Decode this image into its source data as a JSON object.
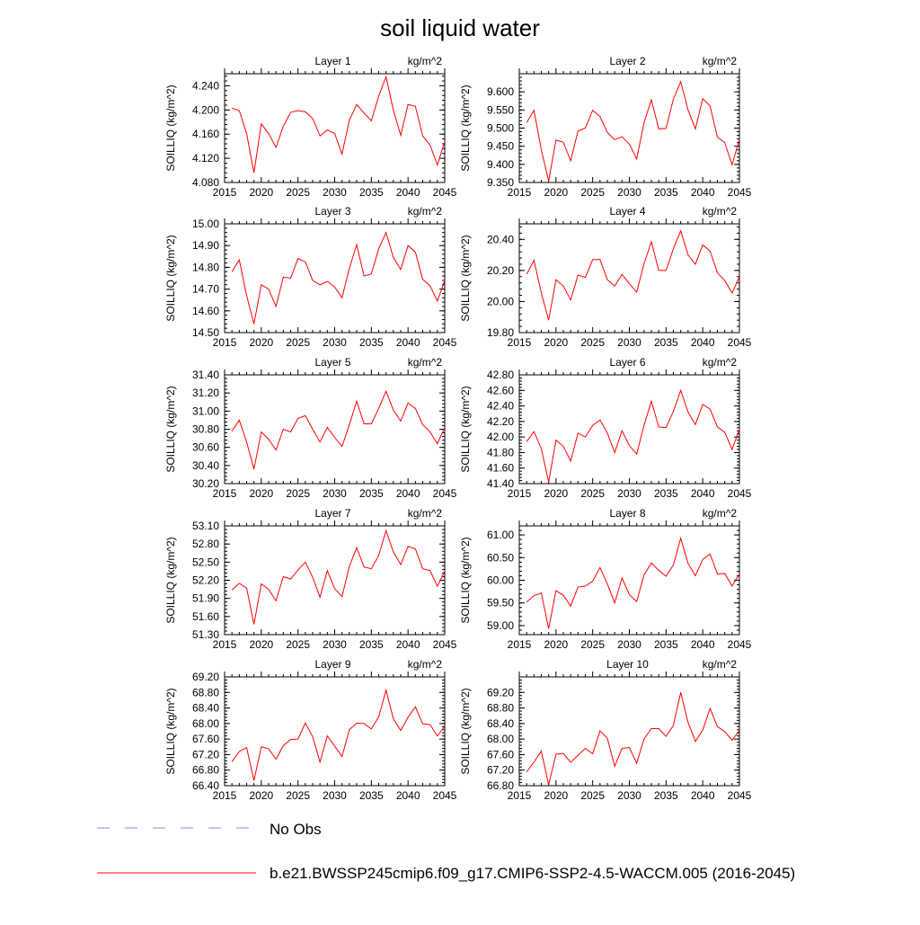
{
  "figure_title": "soil liquid water",
  "legend": {
    "obs_label": "No Obs",
    "model_label": "b.e21.BWSSP245cmip6.f09_g17.CMIP6-SSP2-4.5-WACCM.005 (2016-2045)",
    "obs_color": "#8888ff",
    "model_color": "#ff0000"
  },
  "chart_data": [
    {
      "type": "line",
      "title": "Layer 1",
      "units": "kg/m^2",
      "ylabel": "SOILLIQ  (kg/m^2)",
      "xlim": [
        2015,
        2045
      ],
      "x_ticks": [
        2015,
        2020,
        2025,
        2030,
        2035,
        2040,
        2045
      ],
      "ylim": [
        4.08,
        4.26
      ],
      "y_ticks": [
        "4.080",
        "4.120",
        "4.160",
        "4.200",
        "4.240"
      ],
      "series": [
        {
          "values": [
            4.203,
            4.199,
            4.161,
            4.096,
            4.177,
            4.161,
            4.138,
            4.173,
            4.196,
            4.199,
            4.197,
            4.186,
            4.157,
            4.167,
            4.161,
            4.127,
            4.183,
            4.209,
            4.195,
            4.182,
            4.223,
            4.255,
            4.2,
            4.158,
            4.209,
            4.206,
            4.157,
            4.142,
            4.109,
            4.148
          ]
        }
      ]
    },
    {
      "type": "line",
      "title": "Layer 2",
      "units": "kg/m^2",
      "ylabel": "SOILLIQ  (kg/m^2)",
      "xlim": [
        2015,
        2045
      ],
      "x_ticks": [
        2015,
        2020,
        2025,
        2030,
        2035,
        2040,
        2045
      ],
      "ylim": [
        9.35,
        9.65
      ],
      "y_ticks": [
        "9.350",
        "9.400",
        "9.450",
        "9.500",
        "9.550",
        "9.600"
      ],
      "series": [
        {
          "values": [
            9.515,
            9.549,
            9.44,
            9.354,
            9.467,
            9.461,
            9.41,
            9.492,
            9.5,
            9.549,
            9.532,
            9.488,
            9.468,
            9.476,
            9.456,
            9.415,
            9.515,
            9.578,
            9.498,
            9.499,
            9.58,
            9.628,
            9.55,
            9.498,
            9.581,
            9.561,
            9.475,
            9.46,
            9.399,
            9.469
          ]
        }
      ]
    },
    {
      "type": "line",
      "title": "Layer 3",
      "units": "kg/m^2",
      "ylabel": "SOILLIQ  (kg/m^2)",
      "xlim": [
        2015,
        2045
      ],
      "x_ticks": [
        2015,
        2020,
        2025,
        2030,
        2035,
        2040,
        2045
      ],
      "ylim": [
        14.5,
        15.0
      ],
      "y_ticks": [
        "14.50",
        "14.60",
        "14.70",
        "14.80",
        "14.90",
        "15.00"
      ],
      "series": [
        {
          "values": [
            14.78,
            14.835,
            14.67,
            14.54,
            14.72,
            14.7,
            14.62,
            14.755,
            14.75,
            14.84,
            14.825,
            14.74,
            14.72,
            14.735,
            14.71,
            14.66,
            14.795,
            14.905,
            14.76,
            14.77,
            14.885,
            14.96,
            14.845,
            14.79,
            14.9,
            14.87,
            14.745,
            14.715,
            14.645,
            14.74
          ]
        }
      ]
    },
    {
      "type": "line",
      "title": "Layer 4",
      "units": "kg/m^2",
      "ylabel": "SOILLIQ  (kg/m^2)",
      "xlim": [
        2015,
        2045
      ],
      "x_ticks": [
        2015,
        2020,
        2025,
        2030,
        2035,
        2040,
        2045
      ],
      "ylim": [
        19.8,
        20.5
      ],
      "y_ticks": [
        "19.80",
        "20.00",
        "20.20",
        "20.40"
      ],
      "series": [
        {
          "values": [
            20.175,
            20.265,
            20.055,
            19.88,
            20.14,
            20.1,
            20.01,
            20.17,
            20.155,
            20.27,
            20.27,
            20.14,
            20.1,
            20.175,
            20.115,
            20.06,
            20.245,
            20.385,
            20.2,
            20.2,
            20.34,
            20.455,
            20.3,
            20.24,
            20.365,
            20.325,
            20.185,
            20.135,
            20.055,
            20.16
          ]
        }
      ]
    },
    {
      "type": "line",
      "title": "Layer 5",
      "units": "kg/m^2",
      "ylabel": "SOILLIQ  (kg/m^2)",
      "xlim": [
        2015,
        2045
      ],
      "x_ticks": [
        2015,
        2020,
        2025,
        2030,
        2035,
        2040,
        2045
      ],
      "ylim": [
        30.2,
        31.4
      ],
      "y_ticks": [
        "30.20",
        "30.40",
        "30.60",
        "30.80",
        "31.00",
        "31.20",
        "31.40"
      ],
      "series": [
        {
          "values": [
            30.78,
            30.9,
            30.66,
            30.36,
            30.77,
            30.69,
            30.57,
            30.8,
            30.77,
            30.92,
            30.95,
            30.8,
            30.66,
            30.82,
            30.71,
            30.61,
            30.85,
            31.11,
            30.86,
            30.86,
            31.03,
            31.22,
            31.01,
            30.89,
            31.09,
            31.03,
            30.85,
            30.77,
            30.64,
            30.82
          ]
        }
      ]
    },
    {
      "type": "line",
      "title": "Layer 6",
      "units": "kg/m^2",
      "ylabel": "SOILLIQ  (kg/m^2)",
      "xlim": [
        2015,
        2045
      ],
      "x_ticks": [
        2015,
        2020,
        2025,
        2030,
        2035,
        2040,
        2045
      ],
      "ylim": [
        41.4,
        42.8
      ],
      "y_ticks": [
        "41.40",
        "41.60",
        "41.80",
        "42.00",
        "42.20",
        "42.40",
        "42.60",
        "42.80"
      ],
      "series": [
        {
          "values": [
            41.94,
            42.07,
            41.85,
            41.42,
            41.96,
            41.88,
            41.69,
            42.05,
            42.0,
            42.15,
            42.22,
            42.05,
            41.8,
            42.08,
            41.89,
            41.78,
            42.15,
            42.46,
            42.13,
            42.12,
            42.33,
            42.6,
            42.32,
            42.16,
            42.42,
            42.36,
            42.13,
            42.06,
            41.84,
            42.1
          ]
        }
      ]
    },
    {
      "type": "line",
      "title": "Layer 7",
      "units": "kg/m^2",
      "ylabel": "SOILLIQ  (kg/m^2)",
      "xlim": [
        2015,
        2045
      ],
      "x_ticks": [
        2015,
        2020,
        2025,
        2030,
        2035,
        2040,
        2045
      ],
      "ylim": [
        51.3,
        53.1
      ],
      "y_ticks": [
        "51.30",
        "51.60",
        "51.90",
        "52.20",
        "52.50",
        "52.80",
        "53.10"
      ],
      "series": [
        {
          "values": [
            52.04,
            52.15,
            52.07,
            51.47,
            52.14,
            52.05,
            51.86,
            52.26,
            52.22,
            52.37,
            52.5,
            52.25,
            51.92,
            52.36,
            52.06,
            51.93,
            52.43,
            52.74,
            52.42,
            52.39,
            52.61,
            53.02,
            52.67,
            52.46,
            52.76,
            52.72,
            52.39,
            52.36,
            52.1,
            52.35
          ]
        }
      ]
    },
    {
      "type": "line",
      "title": "Layer 8",
      "units": "kg/m^2",
      "ylabel": "SOILLIQ  (kg/m^2)",
      "xlim": [
        2015,
        2045
      ],
      "x_ticks": [
        2015,
        2020,
        2025,
        2030,
        2035,
        2040,
        2045
      ],
      "ylim": [
        58.8,
        61.2
      ],
      "y_ticks": [
        "59.00",
        "59.50",
        "60.00",
        "60.50",
        "61.00"
      ],
      "series": [
        {
          "values": [
            59.52,
            59.66,
            59.72,
            58.93,
            59.77,
            59.67,
            59.43,
            59.85,
            59.87,
            59.98,
            60.28,
            59.92,
            59.5,
            60.05,
            59.68,
            59.53,
            60.12,
            60.38,
            60.22,
            60.09,
            60.34,
            60.93,
            60.37,
            60.1,
            60.46,
            60.58,
            60.14,
            60.15,
            59.87,
            60.14
          ]
        }
      ]
    },
    {
      "type": "line",
      "title": "Layer 9",
      "units": "kg/m^2",
      "ylabel": "SOILLIQ  (kg/m^2)",
      "xlim": [
        2015,
        2045
      ],
      "x_ticks": [
        2015,
        2020,
        2025,
        2030,
        2035,
        2040,
        2045
      ],
      "ylim": [
        66.4,
        69.2
      ],
      "y_ticks": [
        "66.40",
        "66.80",
        "67.20",
        "67.60",
        "68.00",
        "68.40",
        "68.80",
        "69.20"
      ],
      "series": [
        {
          "values": [
            67.02,
            67.28,
            67.38,
            66.53,
            67.4,
            67.35,
            67.08,
            67.43,
            67.59,
            67.6,
            68.01,
            67.66,
            67.01,
            67.68,
            67.42,
            67.15,
            67.84,
            68.01,
            68.0,
            67.86,
            68.17,
            68.86,
            68.12,
            67.82,
            68.16,
            68.43,
            67.99,
            67.97,
            67.68,
            67.93
          ]
        }
      ]
    },
    {
      "type": "line",
      "title": "Layer 10",
      "units": "kg/m^2",
      "ylabel": "SOILLIQ  (kg/m^2)",
      "xlim": [
        2015,
        2045
      ],
      "x_ticks": [
        2015,
        2020,
        2025,
        2030,
        2035,
        2040,
        2045
      ],
      "ylim": [
        66.8,
        69.6
      ],
      "y_ticks": [
        "66.80",
        "67.20",
        "67.60",
        "68.00",
        "68.40",
        "68.80",
        "69.20"
      ],
      "series": [
        {
          "values": [
            67.15,
            67.41,
            67.69,
            66.82,
            67.61,
            67.63,
            67.4,
            67.58,
            67.76,
            67.62,
            68.21,
            68.02,
            67.3,
            67.76,
            67.78,
            67.38,
            68.0,
            68.27,
            68.27,
            68.07,
            68.35,
            69.2,
            68.43,
            67.94,
            68.23,
            68.79,
            68.32,
            68.19,
            67.97,
            68.22
          ]
        }
      ]
    }
  ]
}
